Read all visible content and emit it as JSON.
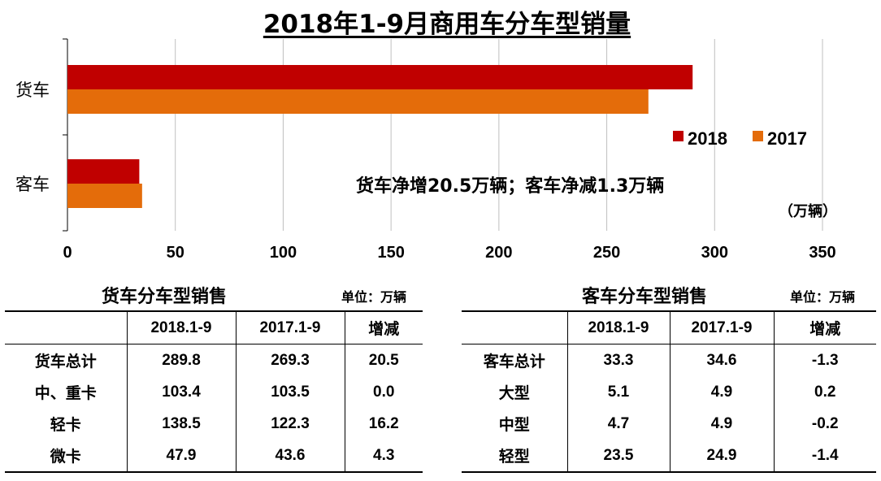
{
  "title": "2018年1-9月商用车分车型销量",
  "chart_data": {
    "type": "bar",
    "orientation": "horizontal",
    "categories": [
      "货车",
      "客车"
    ],
    "series": [
      {
        "name": "2018",
        "values": [
          289.8,
          33.3
        ],
        "color": "#c00000"
      },
      {
        "name": "2017",
        "values": [
          269.3,
          34.6
        ],
        "color": "#e46c0a"
      }
    ],
    "xlim": [
      0,
      350
    ],
    "xticks": [
      "0",
      "50",
      "100",
      "150",
      "200",
      "250",
      "300",
      "350"
    ],
    "unit_label": "（万辆）",
    "annotation": "货车净增20.5万辆；客车净减1.3万辆",
    "legend_position": "right"
  },
  "truck_table": {
    "title": "货车分车型销售",
    "unit": "单位：万辆",
    "headers": [
      "",
      "2018.1-9",
      "2017.1-9",
      "增减"
    ],
    "rows": [
      [
        "货车总计",
        "289.8",
        "269.3",
        "20.5"
      ],
      [
        "中、重卡",
        "103.4",
        "103.5",
        "0.0"
      ],
      [
        "轻卡",
        "138.5",
        "122.3",
        "16.2"
      ],
      [
        "微卡",
        "47.9",
        "43.6",
        "4.3"
      ]
    ]
  },
  "bus_table": {
    "title": "客车分车型销售",
    "unit": "单位：万辆",
    "headers": [
      "",
      "2018.1-9",
      "2017.1-9",
      "增减"
    ],
    "rows": [
      [
        "客车总计",
        "33.3",
        "34.6",
        "-1.3"
      ],
      [
        "大型",
        "5.1",
        "4.9",
        "0.2"
      ],
      [
        "中型",
        "4.7",
        "4.9",
        "-0.2"
      ],
      [
        "轻型",
        "23.5",
        "24.9",
        "-1.4"
      ]
    ]
  }
}
